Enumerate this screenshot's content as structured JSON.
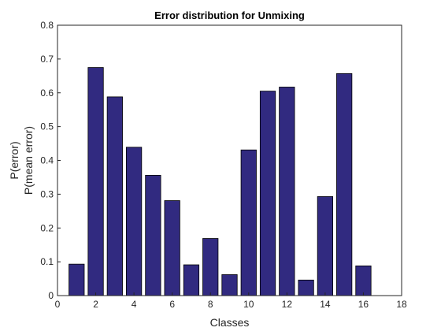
{
  "chart_data": {
    "type": "bar",
    "title": "Error distribution for Unmixing",
    "xlabel": "Classes",
    "ylabel": [
      "P(error)",
      "P(mean error)"
    ],
    "x": [
      1,
      2,
      3,
      4,
      5,
      6,
      7,
      8,
      9,
      10,
      11,
      12,
      13,
      14,
      15,
      16
    ],
    "values": [
      0.093,
      0.675,
      0.588,
      0.439,
      0.356,
      0.281,
      0.091,
      0.169,
      0.062,
      0.431,
      0.605,
      0.617,
      0.046,
      0.293,
      0.657,
      0.088
    ],
    "xlim": [
      0,
      18
    ],
    "ylim": [
      0,
      0.8
    ],
    "xticks": [
      "0",
      "2",
      "4",
      "6",
      "8",
      "10",
      "12",
      "14",
      "16",
      "18"
    ],
    "yticks": [
      "0",
      "0.1",
      "0.2",
      "0.3",
      "0.4",
      "0.5",
      "0.6",
      "0.7",
      "0.8"
    ],
    "bar_color": "#312a80",
    "bar_edge_color": "#000000",
    "grid": false,
    "legend": "none"
  }
}
